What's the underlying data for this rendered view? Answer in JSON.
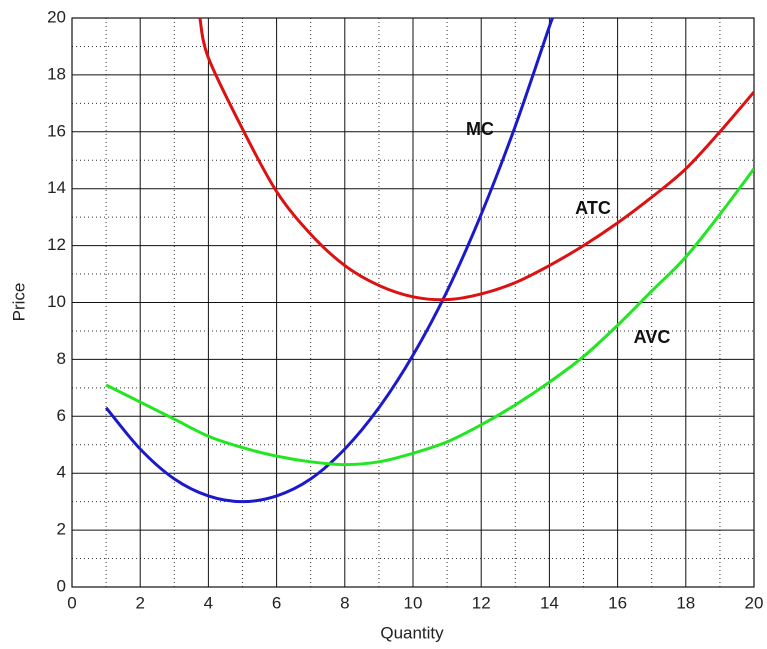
{
  "chart_data": {
    "type": "line",
    "xlabel": "Quantity",
    "ylabel": "Price",
    "xlim": [
      0,
      20
    ],
    "ylim": [
      0,
      20
    ],
    "xticks": [
      0,
      2,
      4,
      6,
      8,
      10,
      12,
      14,
      16,
      18,
      20
    ],
    "yticks": [
      0,
      2,
      4,
      6,
      8,
      10,
      12,
      14,
      16,
      18,
      20
    ],
    "minor_xticks": [
      1,
      3,
      5,
      7,
      9,
      11,
      13,
      15,
      17,
      19
    ],
    "minor_yticks": [
      1,
      3,
      5,
      7,
      9,
      11,
      13,
      15,
      17,
      19
    ],
    "grid": true,
    "series": [
      {
        "name": "MC",
        "color": "#1a1acc",
        "x": [
          1,
          2,
          3,
          4,
          5,
          6,
          7,
          8,
          9,
          10,
          11,
          12,
          13,
          14,
          14.1
        ],
        "values": [
          6.3,
          4.85,
          3.8,
          3.2,
          3.0,
          3.2,
          3.8,
          4.85,
          6.3,
          8.15,
          10.4,
          13.1,
          16.2,
          19.7,
          20
        ]
      },
      {
        "name": "ATC",
        "color": "#dd1111",
        "x": [
          3.75,
          4,
          5,
          6,
          7,
          8,
          9,
          10,
          11,
          12,
          13,
          14,
          15,
          16,
          17,
          18,
          19,
          20
        ],
        "values": [
          20,
          18.6,
          16.1,
          13.9,
          12.4,
          11.3,
          10.6,
          10.2,
          10.1,
          10.3,
          10.7,
          11.3,
          12.0,
          12.8,
          13.7,
          14.7,
          16.0,
          17.4
        ]
      },
      {
        "name": "AVC",
        "color": "#22e622",
        "x": [
          1,
          2,
          3,
          4,
          5,
          6,
          7,
          8,
          9,
          10,
          11,
          12,
          13,
          14,
          15,
          16,
          17,
          18,
          19,
          20
        ],
        "values": [
          7.1,
          6.5,
          5.9,
          5.3,
          4.9,
          4.6,
          4.4,
          4.3,
          4.4,
          4.7,
          5.1,
          5.7,
          6.4,
          7.2,
          8.1,
          9.2,
          10.4,
          11.6,
          13.1,
          14.7
        ]
      }
    ]
  }
}
